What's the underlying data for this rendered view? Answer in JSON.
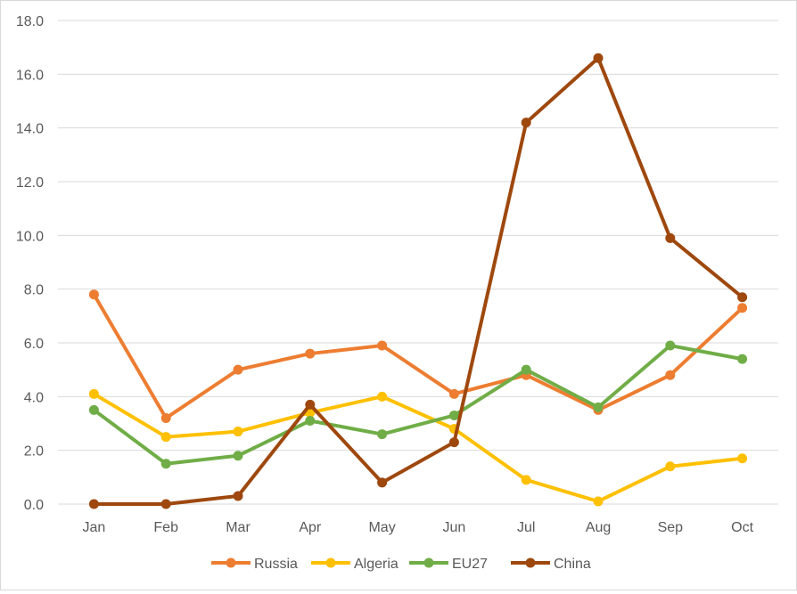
{
  "chart_data": {
    "type": "line",
    "title": "",
    "xlabel": "",
    "ylabel": "",
    "categories": [
      "Jan",
      "Feb",
      "Mar",
      "Apr",
      "May",
      "Jun",
      "Jul",
      "Aug",
      "Sep",
      "Oct"
    ],
    "ylim": [
      0,
      18
    ],
    "y_ticks": [
      "0.0",
      "2.0",
      "4.0",
      "6.0",
      "8.0",
      "10.0",
      "12.0",
      "14.0",
      "16.0",
      "18.0"
    ],
    "grid": true,
    "legend_position": "bottom",
    "series": [
      {
        "name": "Russia",
        "color": "#ED7D31",
        "values": [
          7.8,
          3.2,
          5.0,
          5.6,
          5.9,
          4.1,
          4.8,
          3.5,
          4.8,
          7.3
        ]
      },
      {
        "name": "Algeria",
        "color": "#FFC000",
        "values": [
          4.1,
          2.5,
          2.7,
          3.4,
          4.0,
          2.8,
          0.9,
          0.1,
          1.4,
          1.7
        ]
      },
      {
        "name": "EU27",
        "color": "#70AD47",
        "values": [
          3.5,
          1.5,
          1.8,
          3.1,
          2.6,
          3.3,
          5.0,
          3.6,
          5.9,
          5.4
        ]
      },
      {
        "name": "China",
        "color": "#9E480E",
        "values": [
          0.0,
          0.0,
          0.3,
          3.7,
          0.8,
          2.3,
          14.2,
          16.6,
          9.9,
          7.7
        ]
      }
    ]
  }
}
